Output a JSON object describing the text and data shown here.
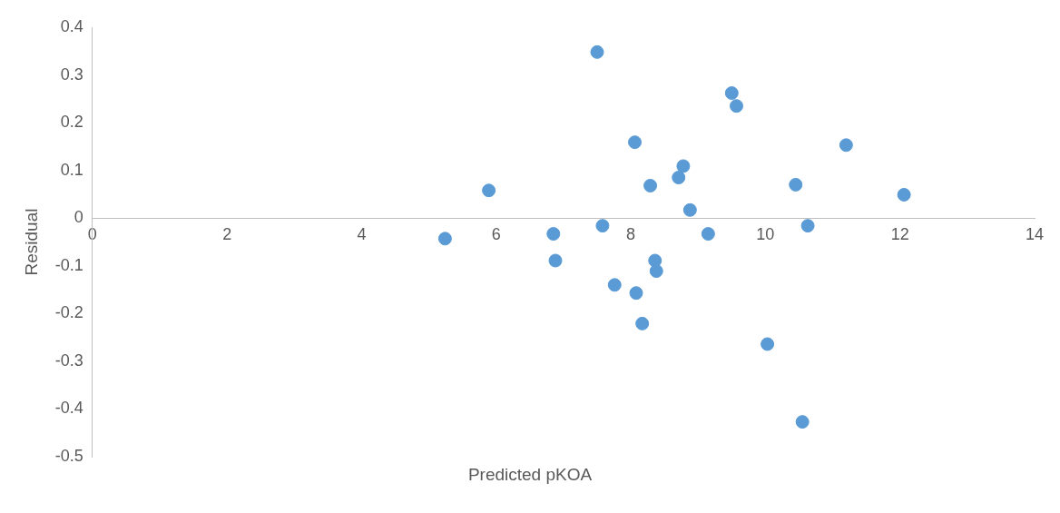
{
  "chart_data": {
    "type": "scatter",
    "xlabel": "Predicted pKOA",
    "ylabel": "Residual",
    "marker": "circle",
    "grid": false,
    "xlim": [
      0,
      14
    ],
    "xticks": [
      0,
      2,
      4,
      6,
      8,
      10,
      12,
      14
    ],
    "ylim": [
      -0.5,
      0.4
    ],
    "yticks": [
      -0.5,
      -0.4,
      -0.3,
      -0.2,
      -0.1,
      0,
      0.1,
      0.2,
      0.3,
      0.4
    ],
    "series": [
      {
        "color": "#5b9bd5",
        "x": [
          5.24,
          5.89,
          6.85,
          6.88,
          7.5,
          7.58,
          7.76,
          8.06,
          8.08,
          8.17,
          8.29,
          8.36,
          8.38,
          8.71,
          8.78,
          8.88,
          9.15,
          9.5,
          9.57,
          10.03,
          10.45,
          10.55,
          10.63,
          11.2,
          12.06
        ],
        "values": [
          -0.043,
          0.058,
          -0.033,
          -0.089,
          0.348,
          -0.016,
          -0.14,
          0.159,
          -0.157,
          -0.221,
          0.068,
          -0.089,
          -0.111,
          0.085,
          0.109,
          0.017,
          -0.033,
          0.262,
          0.235,
          -0.264,
          0.07,
          -0.427,
          -0.016,
          0.153,
          0.049
        ]
      }
    ]
  }
}
